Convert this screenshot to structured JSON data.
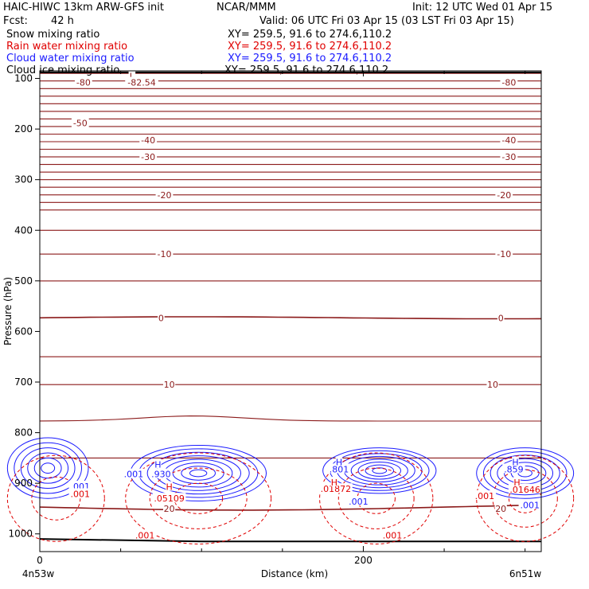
{
  "header": {
    "model": "HAIC-HIWC 13km ARW-GFS init",
    "org": "NCAR/MMM",
    "init": "Init: 12 UTC Wed 01 Apr 15",
    "fcst_label": "Fcst:",
    "fcst_value": "42 h",
    "valid": "Valid: 06 UTC Fri 03 Apr 15 (03 LST Fri 03 Apr 15)"
  },
  "fields": [
    {
      "name": "Snow mixing ratio",
      "xy": "XY= 259.5, 91.6 to 274.6,110.2",
      "color": "#000000"
    },
    {
      "name": "Rain water mixing ratio",
      "xy": "XY= 259.5, 91.6 to 274.6,110.2",
      "color": "#e00000"
    },
    {
      "name": "Cloud water mixing ratio",
      "xy": "XY= 259.5, 91.6 to 274.6,110.2",
      "color": "#1a1aff"
    },
    {
      "name": "Cloud ice mixing ratio",
      "xy": "XY= 259.5, 91.6 to 274.6,110.2",
      "color": "#000000"
    }
  ],
  "chart_data": {
    "type": "line",
    "description_units": "cross-section",
    "xlabel": "Distance (km)",
    "ylabel": "Pressure (hPa)",
    "xlim": [
      0,
      310
    ],
    "ylim": [
      1035,
      85
    ],
    "x_ticks": [
      0,
      200
    ],
    "x_minor_ticks": [
      50,
      100,
      150,
      250,
      300
    ],
    "y_ticks": [
      100,
      200,
      300,
      400,
      500,
      600,
      700,
      800,
      900,
      1000
    ],
    "x_end_labels": {
      "left": "4n53w",
      "right": "6n51w"
    },
    "temperature_contours": {
      "color": "#8b1a1a",
      "levels": [
        {
          "label": "-80",
          "p": 108
        },
        {
          "label": "-50",
          "p": 188
        },
        {
          "label": "-40",
          "p": 222
        },
        {
          "label": "-30",
          "p": 255
        },
        {
          "label": "-20",
          "p": 330
        },
        {
          "label": "-10",
          "p": 447
        },
        {
          "label": "0",
          "p": 573
        },
        {
          "label": "10",
          "p": 705
        },
        {
          "label": "20",
          "p": 950
        }
      ],
      "low_label": {
        "marker": "L",
        "value": "-82.54"
      }
    },
    "cloud_water": {
      "color": "#1a1aff",
      "labels": [
        ".001",
        ".001",
        ".001",
        ".930",
        ".801",
        ".859",
        ".001"
      ],
      "highs": [
        "H",
        "H",
        "H"
      ]
    },
    "rain_water": {
      "color": "#e00000",
      "labels": [
        ".001",
        ".001",
        ".001",
        ".05109",
        ".01872",
        ".01646",
        ".001"
      ],
      "highs": [
        "H",
        "H",
        "H"
      ]
    }
  }
}
